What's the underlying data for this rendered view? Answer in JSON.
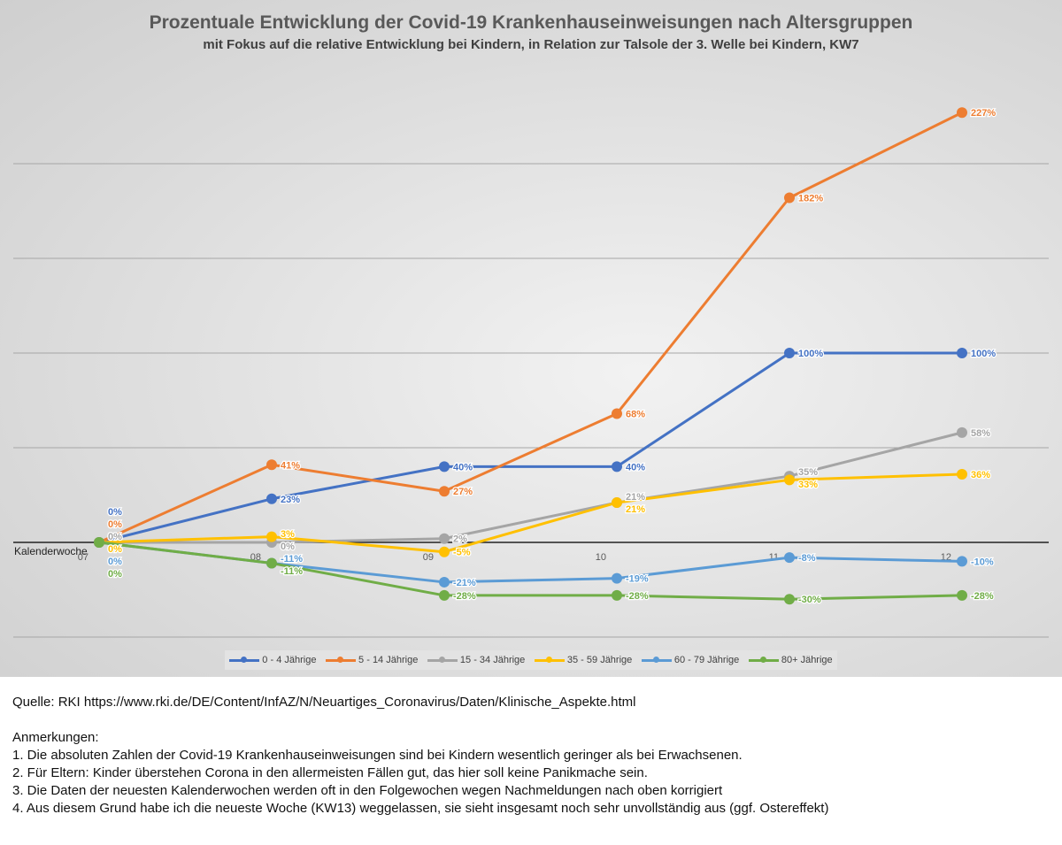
{
  "chart_data": {
    "type": "line",
    "title": "Prozentuale Entwicklung der Covid-19 Krankenhauseinweisungen nach Altersgruppen",
    "subtitle": "mit Fokus auf die relative Entwicklung bei Kindern, in Relation zur Talsole der 3. Welle bei Kindern, KW7",
    "xlabel": "Kalenderwoche",
    "categories": [
      "07",
      "08",
      "09",
      "10",
      "11",
      "12"
    ],
    "ylim": [
      -50,
      250
    ],
    "y_gridlines": [
      -50,
      0,
      50,
      100,
      150,
      200
    ],
    "grid": true,
    "legend_position": "bottom",
    "value_unit": "%",
    "series": [
      {
        "name": "0 - 4 Jährige",
        "color": "#4472c4",
        "values": [
          0,
          23,
          40,
          40,
          100,
          100
        ]
      },
      {
        "name": "5 - 14 Jährige",
        "color": "#ed7d31",
        "values": [
          0,
          41,
          27,
          68,
          182,
          227
        ]
      },
      {
        "name": "15 - 34 Jährige",
        "color": "#a5a5a5",
        "values": [
          0,
          0,
          2,
          21,
          35,
          58
        ]
      },
      {
        "name": "35 - 59 Jährige",
        "color": "#ffc000",
        "values": [
          0,
          3,
          -5,
          21,
          33,
          36
        ]
      },
      {
        "name": "60 - 79 Jährige",
        "color": "#5b9bd5",
        "values": [
          0,
          -11,
          -21,
          -19,
          -8,
          -10
        ]
      },
      {
        "name": "80+ Jährige",
        "color": "#70ad47",
        "values": [
          0,
          -11,
          -28,
          -28,
          -30,
          -28
        ]
      }
    ]
  },
  "notes": {
    "source": "Quelle: RKI https://www.rki.de/DE/Content/InfAZ/N/Neuartiges_Coronavirus/Daten/Klinische_Aspekte.html",
    "heading": "Anmerkungen:",
    "items": [
      "1. Die absoluten Zahlen der Covid-19 Krankenhauseinweisungen sind bei Kindern wesentlich geringer als bei Erwachsenen.",
      "2. Für Eltern: Kinder überstehen Corona in den allermeisten Fällen gut, das hier soll keine Panikmache sein.",
      "3. Die Daten der neuesten Kalenderwochen werden oft in den Folgewochen wegen Nachmeldungen nach oben korrigiert",
      "4. Aus diesem Grund habe ich die neueste Woche (KW13) weggelassen, sie sieht insgesamt noch sehr unvollständig aus (ggf. Ostereffekt)"
    ]
  }
}
